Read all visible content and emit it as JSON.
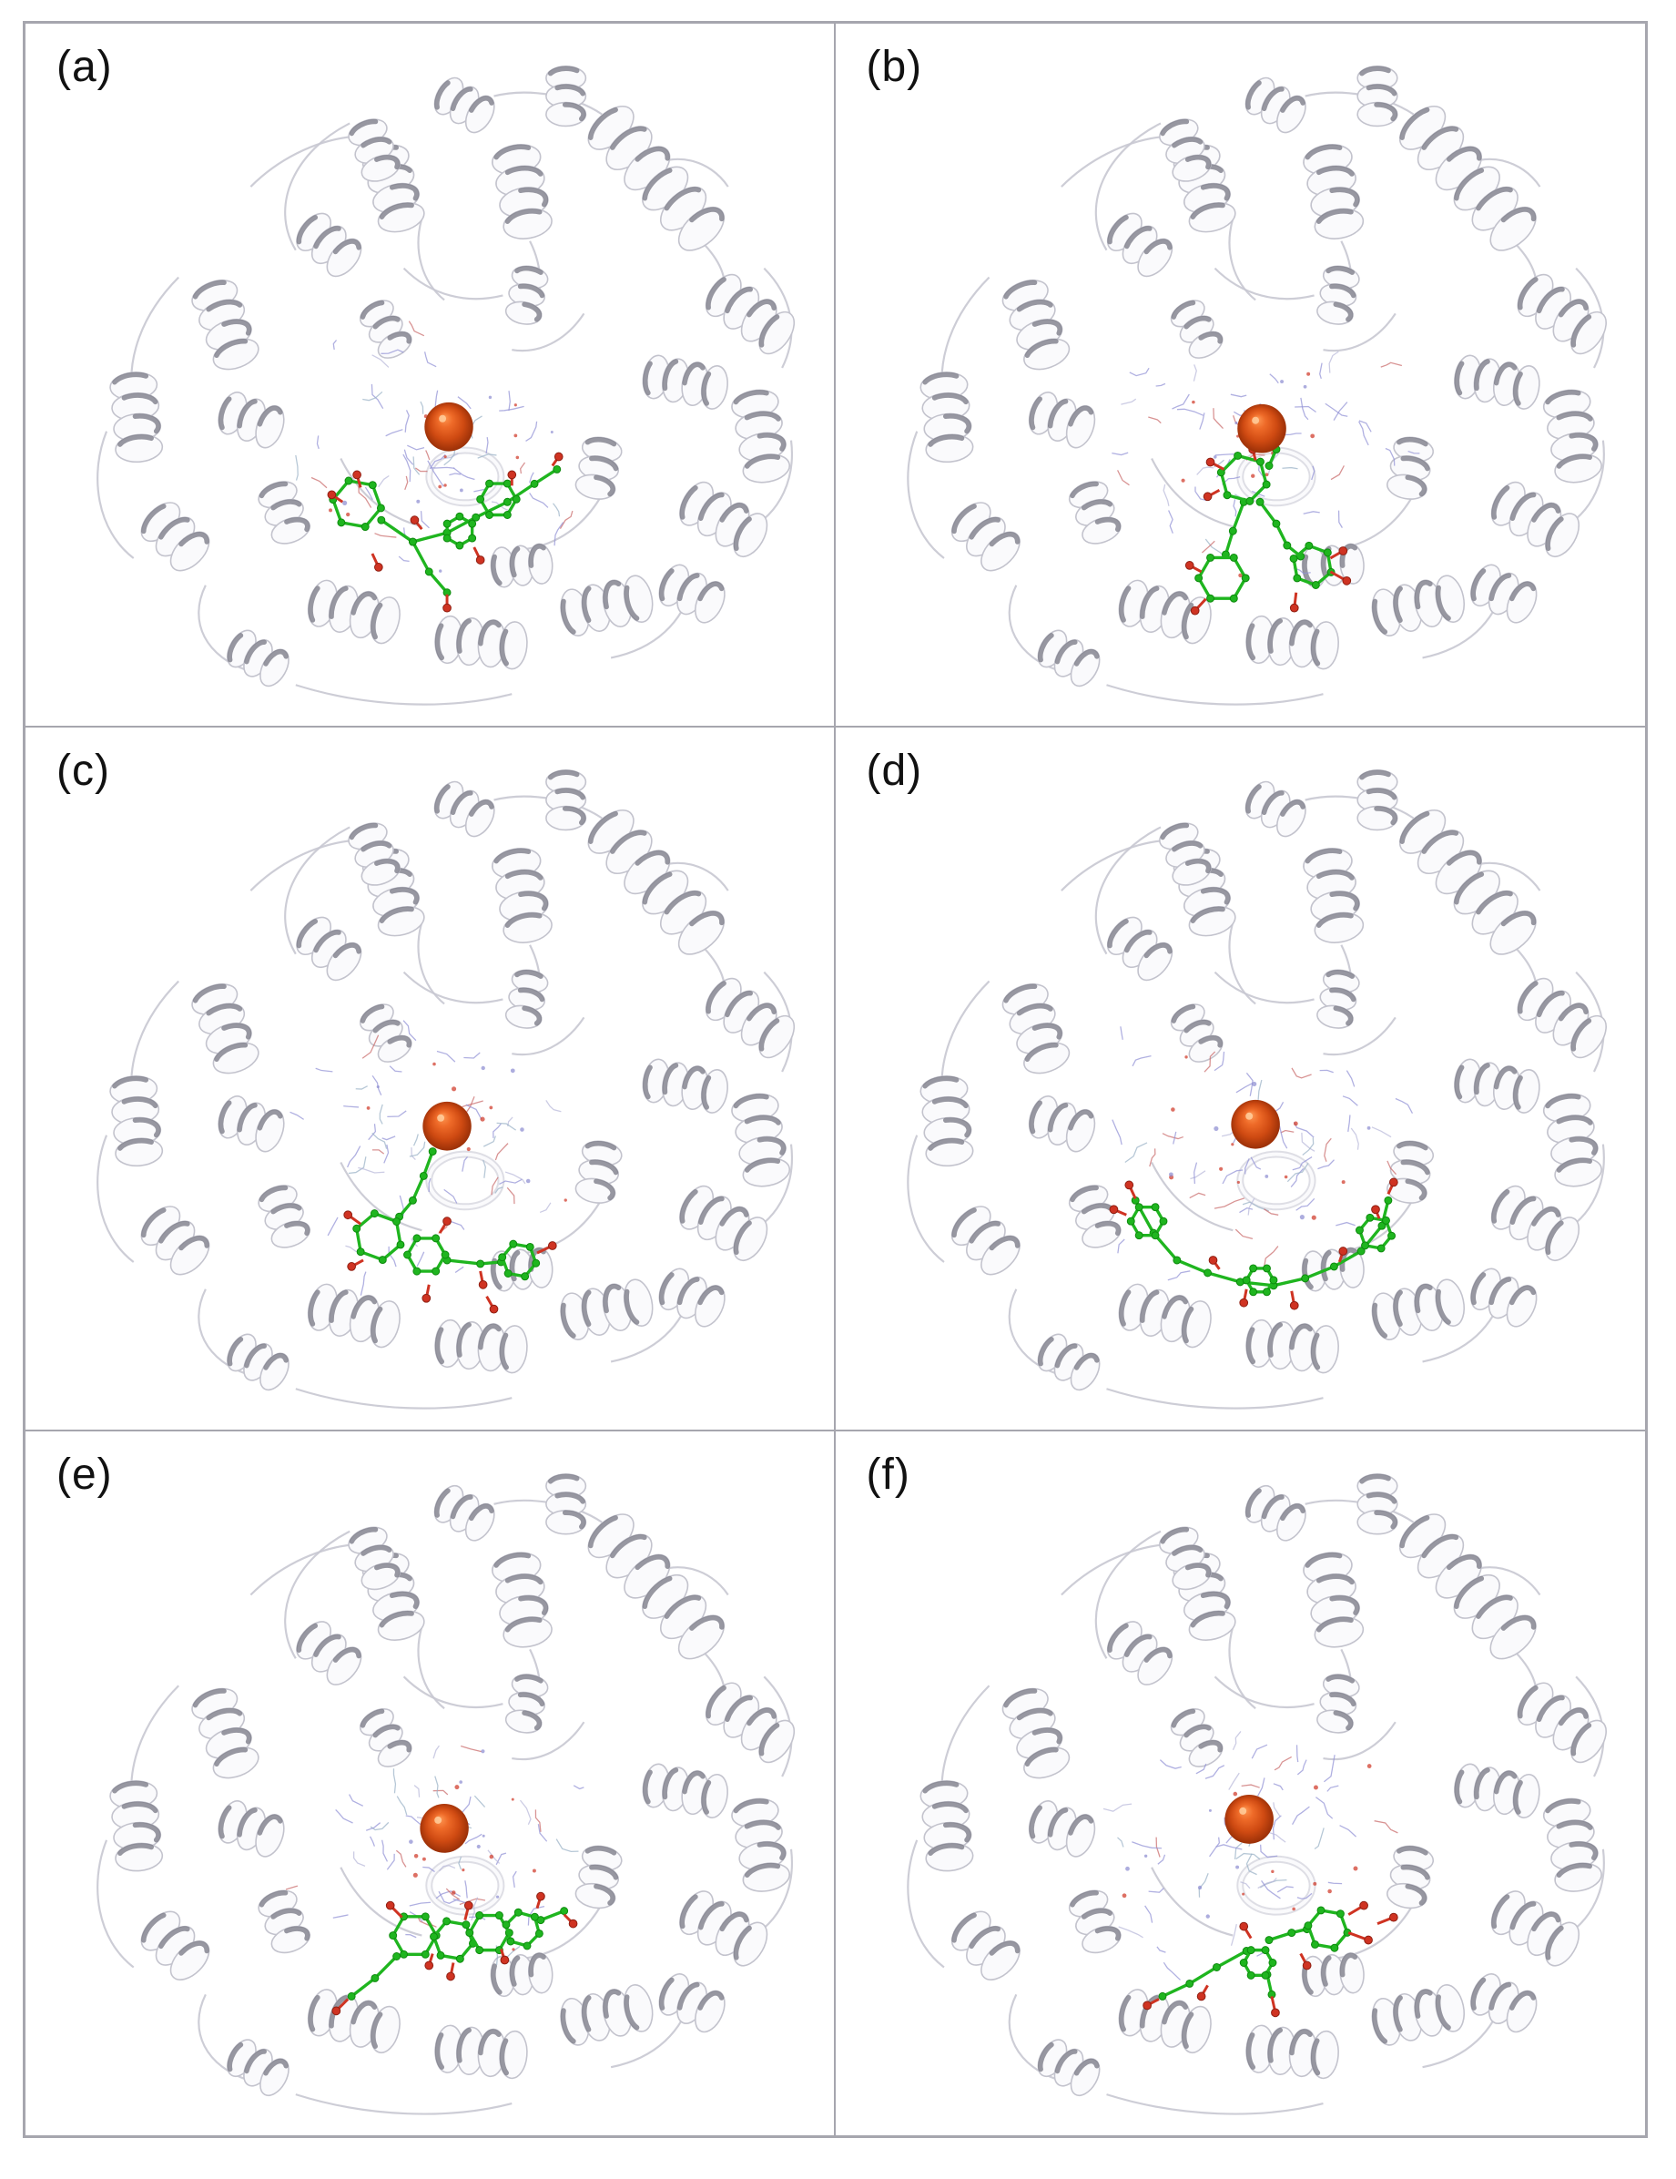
{
  "figure": {
    "panels": [
      {
        "id": "a",
        "label": "(a)"
      },
      {
        "id": "b",
        "label": "(b)"
      },
      {
        "id": "c",
        "label": "(c)"
      },
      {
        "id": "d",
        "label": "(d)"
      },
      {
        "id": "e",
        "label": "(e)"
      },
      {
        "id": "f",
        "label": "(f)"
      }
    ]
  },
  "colors": {
    "background": "#ffffff",
    "panel_border": "#a6a6ae",
    "label_text": "#111111",
    "ribbon_fill": "#fafafc",
    "ribbon_outline": "#c3c3cd",
    "ribbon_shadow": "#7e7e8a",
    "ribbon_tube": "#f2f2f6",
    "loop_stroke": "#c8c8d2",
    "metal_ion": "#cf4a12",
    "metal_ion_highlight": "#ff9a55",
    "metal_ion_dark": "#8f2a05",
    "ligand_carbon": "#1fb51f",
    "ligand_carbon_dark": "#0d8a0d",
    "ligand_oxygen": "#cf3322",
    "residue_blue": "#9191d6",
    "residue_red": "#c96a6a"
  }
}
